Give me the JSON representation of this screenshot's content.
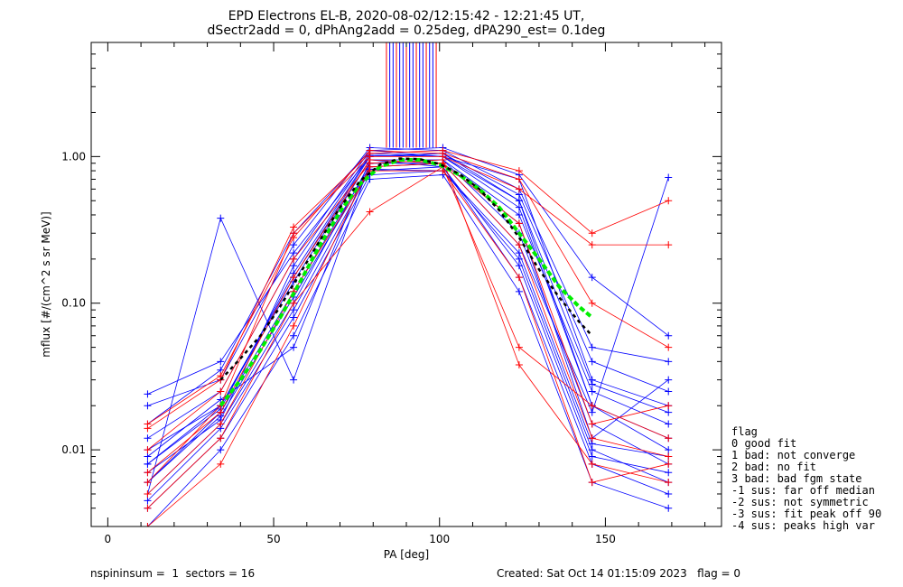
{
  "header": {
    "title_line1": "EPD Electrons EL-B, 2020-08-02/12:15:42 - 12:21:45 UT,",
    "title_line2": "dSectr2add = 0, dPhAng2add = 0.25deg, dPA290_est=   0.1deg"
  },
  "footer": {
    "left": "nspininsum =  1  sectors = 16",
    "right": "Created: Sat Oct 14 01:15:09 2023   flag = 0"
  },
  "legend": {
    "title": "flag",
    "entries": [
      " 0 good fit",
      " 1 bad: not converge",
      " 2 bad: no fit",
      " 3 bad: bad fgm state",
      "-1 sus: far off median",
      "-2 sus: not symmetric",
      "-3 sus: fit peak off 90",
      "-4 sus: peaks high var"
    ]
  },
  "colors": {
    "series_a": "#0000ff",
    "series_b": "#ff0000",
    "fit_green": "#00ee00",
    "fit_black": "#000000",
    "axis": "#000000"
  },
  "chart_data": {
    "type": "line",
    "title": "EPD Electrons EL-B, 2020-08-02/12:15:42 - 12:21:45 UT,",
    "xlabel": "PA [deg]",
    "ylabel": "mflux [#/(cm^2 s sr MeV)]",
    "xlim": [
      -5,
      185
    ],
    "ylim": [
      0.003,
      6
    ],
    "yscale": "log",
    "x_ticks": [
      0,
      50,
      100,
      150
    ],
    "x_tick_labels": [
      "0",
      "50",
      "100",
      "150"
    ],
    "y_ticks": [
      0.01,
      0.1,
      1.0
    ],
    "y_tick_labels": [
      "0.01",
      "0.10",
      "1.00"
    ],
    "pa_bins": [
      12,
      34,
      56,
      79,
      101,
      124,
      146,
      169
    ],
    "series": [
      {
        "color": "blue",
        "values": [
          0.008,
          0.02,
          0.15,
          1.0,
          1.05,
          0.5,
          0.02,
          0.012
        ]
      },
      {
        "color": "blue",
        "values": [
          0.005,
          0.015,
          0.1,
          0.9,
          0.95,
          0.3,
          0.015,
          0.008
        ]
      },
      {
        "color": "blue",
        "values": [
          0.012,
          0.025,
          0.2,
          1.1,
          1.0,
          0.7,
          0.03,
          0.02
        ]
      },
      {
        "color": "blue",
        "values": [
          0.004,
          0.012,
          0.08,
          0.75,
          0.8,
          0.2,
          0.01,
          0.006
        ]
      },
      {
        "color": "blue",
        "values": [
          0.006,
          0.018,
          0.12,
          0.85,
          0.9,
          0.35,
          0.012,
          0.03
        ]
      },
      {
        "color": "blue",
        "values": [
          0.02,
          0.03,
          0.25,
          1.15,
          1.1,
          0.6,
          0.05,
          0.04
        ]
      },
      {
        "color": "blue",
        "values": [
          0.009,
          0.022,
          0.05,
          0.95,
          0.85,
          0.15,
          0.008,
          0.005
        ]
      },
      {
        "color": "blue",
        "values": [
          0.007,
          0.016,
          0.18,
          1.05,
          1.0,
          0.45,
          0.02,
          0.01
        ]
      },
      {
        "color": "blue",
        "values": [
          0.003,
          0.01,
          0.06,
          0.7,
          0.75,
          0.12,
          0.006,
          0.004
        ]
      },
      {
        "color": "blue",
        "values": [
          0.015,
          0.035,
          0.3,
          1.1,
          1.15,
          0.75,
          0.15,
          0.06
        ]
      },
      {
        "color": "blue",
        "values": [
          0.005,
          0.38,
          0.03,
          0.9,
          0.9,
          0.25,
          0.018,
          0.72
        ]
      },
      {
        "color": "blue",
        "values": [
          0.01,
          0.02,
          0.14,
          0.95,
          0.95,
          0.4,
          0.025,
          0.015
        ]
      },
      {
        "color": "blue",
        "values": [
          0.0045,
          0.014,
          0.09,
          0.8,
          0.85,
          0.18,
          0.009,
          0.007
        ]
      },
      {
        "color": "blue",
        "values": [
          0.024,
          0.04,
          0.22,
          1.0,
          1.05,
          0.55,
          0.04,
          0.025
        ]
      },
      {
        "color": "blue",
        "values": [
          0.006,
          0.017,
          0.11,
          0.82,
          0.8,
          0.22,
          0.011,
          0.009
        ]
      },
      {
        "color": "blue",
        "values": [
          0.008,
          0.019,
          0.16,
          1.02,
          1.0,
          0.5,
          0.028,
          0.018
        ]
      },
      {
        "color": "red",
        "values": [
          0.006,
          0.02,
          0.3,
          1.0,
          1.0,
          0.6,
          0.25,
          0.25
        ]
      },
      {
        "color": "red",
        "values": [
          0.014,
          0.03,
          0.33,
          1.05,
          1.1,
          0.8,
          0.3,
          0.5
        ]
      },
      {
        "color": "red",
        "values": [
          0.004,
          0.012,
          0.1,
          0.42,
          0.85,
          0.05,
          0.02,
          0.012
        ]
      },
      {
        "color": "red",
        "values": [
          0.01,
          0.025,
          0.2,
          0.9,
          0.95,
          0.038,
          0.008,
          0.006
        ]
      },
      {
        "color": "red",
        "values": [
          0.003,
          0.008,
          0.07,
          0.85,
          0.9,
          0.25,
          0.012,
          0.009
        ]
      },
      {
        "color": "red",
        "values": [
          0.015,
          0.032,
          0.28,
          1.1,
          1.05,
          0.7,
          0.1,
          0.05
        ]
      },
      {
        "color": "red",
        "values": [
          0.007,
          0.018,
          0.15,
          0.95,
          0.9,
          0.35,
          0.015,
          0.02
        ]
      },
      {
        "color": "red",
        "values": [
          0.005,
          0.015,
          0.12,
          0.8,
          0.8,
          0.15,
          0.006,
          0.008
        ]
      }
    ],
    "fit_green": {
      "x": [
        34,
        40,
        46,
        52,
        58,
        64,
        70,
        76,
        82,
        88,
        94,
        100,
        106,
        112,
        118,
        124,
        130,
        136,
        142,
        146
      ],
      "y": [
        0.02,
        0.03,
        0.048,
        0.08,
        0.14,
        0.25,
        0.42,
        0.65,
        0.85,
        0.95,
        0.95,
        0.88,
        0.75,
        0.6,
        0.45,
        0.3,
        0.2,
        0.13,
        0.095,
        0.08
      ]
    },
    "fit_black": {
      "x": [
        34,
        40,
        46,
        52,
        58,
        64,
        70,
        76,
        82,
        88,
        94,
        100,
        106,
        112,
        118,
        124,
        130,
        136,
        142,
        146
      ],
      "y": [
        0.03,
        0.042,
        0.06,
        0.095,
        0.16,
        0.27,
        0.45,
        0.68,
        0.88,
        0.97,
        0.96,
        0.89,
        0.76,
        0.6,
        0.43,
        0.28,
        0.17,
        0.11,
        0.075,
        0.06
      ]
    },
    "vertical_spike_x": [
      84,
      85,
      86,
      87,
      88,
      89,
      90,
      91,
      92,
      93,
      94,
      95,
      96,
      97,
      98,
      99
    ],
    "grid": false,
    "legend_position": "right-bottom outside"
  }
}
